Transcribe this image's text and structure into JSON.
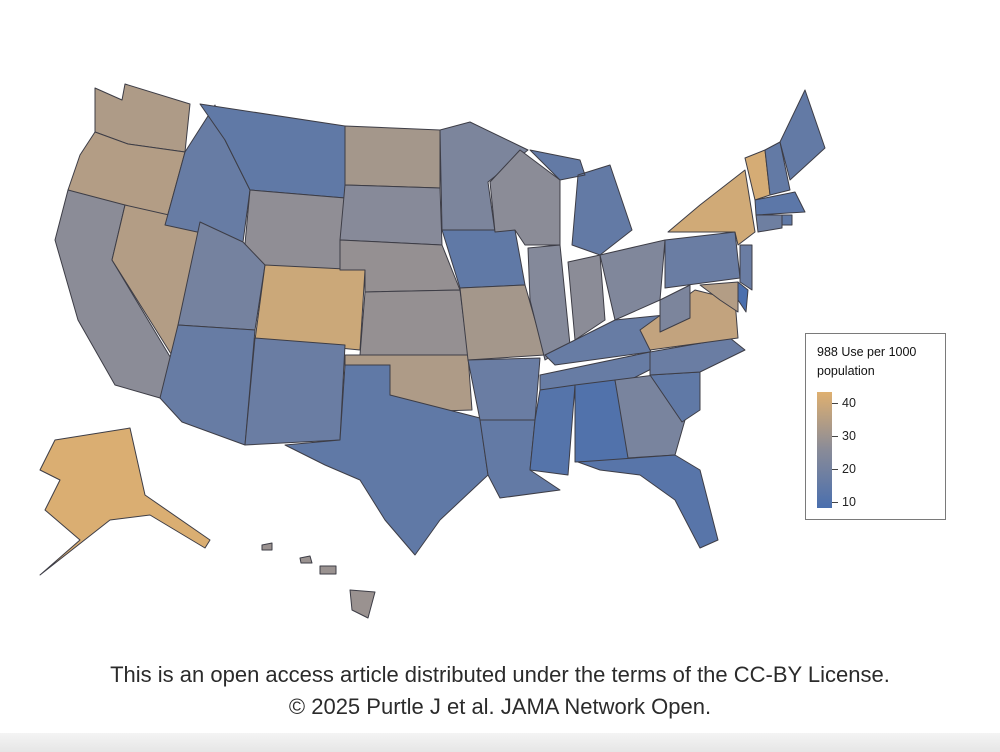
{
  "chart_data": {
    "type": "choropleth",
    "title": "",
    "legend": {
      "title": "988 Use per 1000 population",
      "ticks": [
        40,
        30,
        20,
        10
      ],
      "range": [
        10,
        45
      ],
      "placement": "right",
      "colors": {
        "low": "#4a6fae",
        "mid": "#898b98",
        "high": "#dfb070"
      }
    },
    "states": [
      {
        "name": "WA",
        "value": 35
      },
      {
        "name": "OR",
        "value": 36
      },
      {
        "name": "CA",
        "value": 28
      },
      {
        "name": "NV",
        "value": 36
      },
      {
        "name": "ID",
        "value": 18
      },
      {
        "name": "MT",
        "value": 16
      },
      {
        "name": "WY",
        "value": 29
      },
      {
        "name": "UT",
        "value": 22
      },
      {
        "name": "AZ",
        "value": 18
      },
      {
        "name": "CO",
        "value": 41
      },
      {
        "name": "NM",
        "value": 19
      },
      {
        "name": "ND",
        "value": 33
      },
      {
        "name": "SD",
        "value": 27
      },
      {
        "name": "NE",
        "value": 30
      },
      {
        "name": "KS",
        "value": 30
      },
      {
        "name": "OK",
        "value": 35
      },
      {
        "name": "TX",
        "value": 16
      },
      {
        "name": "MN",
        "value": 24
      },
      {
        "name": "IA",
        "value": 16
      },
      {
        "name": "MO",
        "value": 33
      },
      {
        "name": "AR",
        "value": 19
      },
      {
        "name": "LA",
        "value": 17
      },
      {
        "name": "WI",
        "value": 28
      },
      {
        "name": "IL",
        "value": 26
      },
      {
        "name": "MI",
        "value": 17
      },
      {
        "name": "IN",
        "value": 28
      },
      {
        "name": "OH",
        "value": 25
      },
      {
        "name": "KY",
        "value": 18
      },
      {
        "name": "TN",
        "value": 18
      },
      {
        "name": "MS",
        "value": 13
      },
      {
        "name": "AL",
        "value": 12
      },
      {
        "name": "GA",
        "value": 23
      },
      {
        "name": "FL",
        "value": 14
      },
      {
        "name": "SC",
        "value": 16
      },
      {
        "name": "NC",
        "value": 19
      },
      {
        "name": "VA",
        "value": 39
      },
      {
        "name": "WV",
        "value": 24
      },
      {
        "name": "PA",
        "value": 19
      },
      {
        "name": "NY",
        "value": 42
      },
      {
        "name": "VT",
        "value": 43
      },
      {
        "name": "NH",
        "value": 17
      },
      {
        "name": "ME",
        "value": 17
      },
      {
        "name": "MA",
        "value": 15
      },
      {
        "name": "CT",
        "value": 20
      },
      {
        "name": "RI",
        "value": 16
      },
      {
        "name": "NJ",
        "value": 19
      },
      {
        "name": "DE",
        "value": 10
      },
      {
        "name": "MD",
        "value": 36
      },
      {
        "name": "AK",
        "value": 44
      },
      {
        "name": "HI",
        "value": 31
      }
    ]
  },
  "footer": {
    "line1": "This is an open access article distributed under the terms of the CC-BY License.",
    "line2": "© 2025 Purtle J et al. JAMA Network Open."
  }
}
